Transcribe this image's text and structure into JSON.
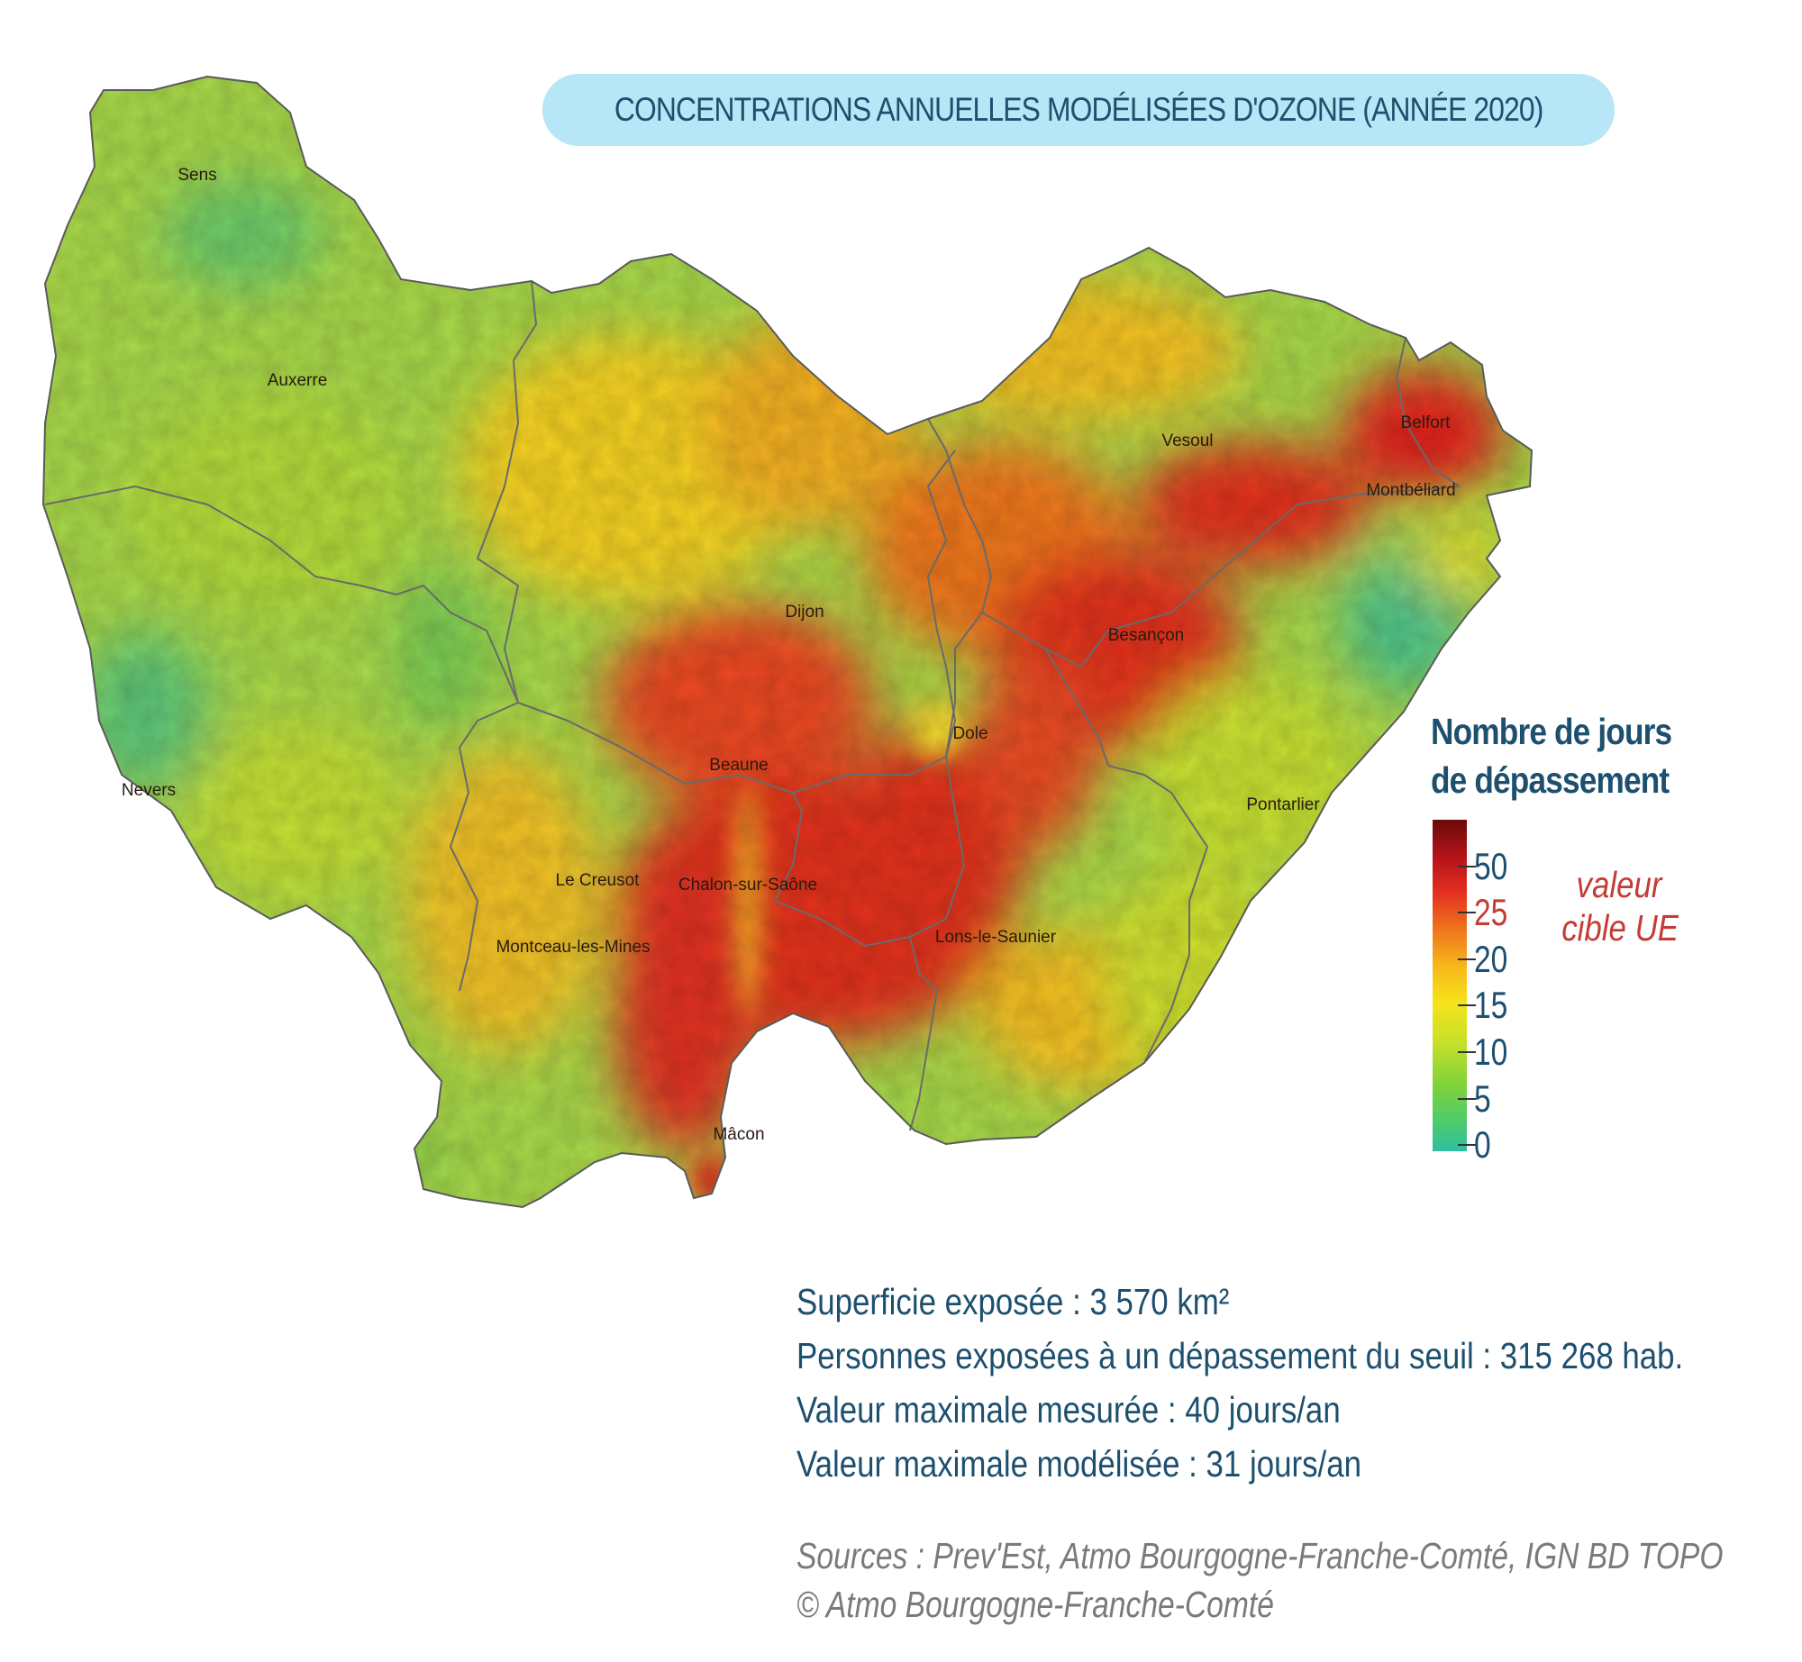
{
  "title": "CONCENTRATIONS ANNUELLES MODÉLISÉES D'OZONE (ANNÉE 2020)",
  "cities": [
    {
      "id": "sens",
      "name": "Sens"
    },
    {
      "id": "auxerre",
      "name": "Auxerre"
    },
    {
      "id": "nevers",
      "name": "Nevers"
    },
    {
      "id": "dijon",
      "name": "Dijon"
    },
    {
      "id": "beaune",
      "name": "Beaune"
    },
    {
      "id": "le-creusot",
      "name": "Le Creusot"
    },
    {
      "id": "chalon",
      "name": "Chalon-sur-Saône"
    },
    {
      "id": "montceau",
      "name": "Montceau-les-Mines"
    },
    {
      "id": "macon",
      "name": "Mâcon"
    },
    {
      "id": "dole",
      "name": "Dole"
    },
    {
      "id": "lons",
      "name": "Lons-le-Saunier"
    },
    {
      "id": "besancon",
      "name": "Besançon"
    },
    {
      "id": "vesoul",
      "name": "Vesoul"
    },
    {
      "id": "belfort",
      "name": "Belfort"
    },
    {
      "id": "montbeliard",
      "name": "Montbéliard"
    },
    {
      "id": "pontarlier",
      "name": "Pontarlier"
    }
  ],
  "legend": {
    "title_line1": "Nombre de jours",
    "title_line2": "de dépassement",
    "ticks": [
      "50",
      "25",
      "20",
      "15",
      "10",
      "5",
      "0"
    ],
    "target_line1": "valeur",
    "target_line2": "cible UE",
    "colors": {
      "max": "#6b0a0a",
      "high": "#e3301f",
      "mid": "#f7b71b",
      "low": "#c7e129",
      "min": "#2fbfa0"
    }
  },
  "stats": {
    "line1": "Superficie exposée : 3 570 km²",
    "line2": "Personnes exposées à un dépassement du seuil : 315 268 hab.",
    "line3": "Valeur maximale mesurée : 40 jours/an",
    "line4": "Valeur maximale modélisée : 31 jours/an"
  },
  "sources": {
    "line1": "Sources : Prev'Est, Atmo Bourgogne-Franche-Comté, IGN BD TOPO",
    "line2": "© Atmo Bourgogne-Franche-Comté"
  }
}
